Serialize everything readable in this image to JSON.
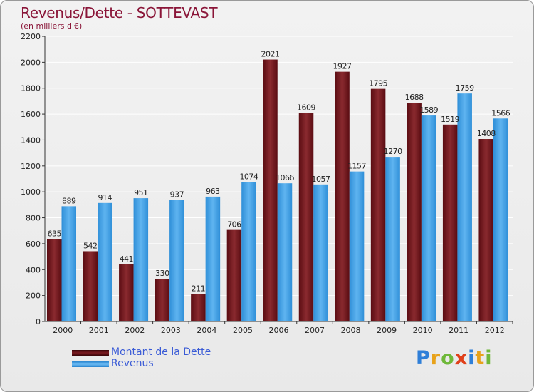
{
  "header": {
    "title": "Revenus/Dette - SOTTEVAST",
    "subtitle": "(en milliers d'€)"
  },
  "colors": {
    "dette": "#6b0f16",
    "revenus": "#3d9fe6",
    "axis_text": "#222222"
  },
  "legend": [
    {
      "label": "Montant de la Dette",
      "color": "#6b0f16"
    },
    {
      "label": "Revenus",
      "color": "#3d9fe6"
    }
  ],
  "logo": {
    "letters": [
      {
        "ch": "P",
        "color": "#2f7fd8"
      },
      {
        "ch": "r",
        "color": "#e8a21a"
      },
      {
        "ch": "o",
        "color": "#6fb83a"
      },
      {
        "ch": "x",
        "color": "#e0401a"
      },
      {
        "ch": "i",
        "color": "#2f7fd8"
      },
      {
        "ch": "t",
        "color": "#e8a21a"
      },
      {
        "ch": "i",
        "color": "#6fb83a"
      }
    ]
  },
  "chart_data": {
    "type": "bar",
    "categories": [
      "2000",
      "2001",
      "2002",
      "2003",
      "2004",
      "2005",
      "2006",
      "2007",
      "2008",
      "2009",
      "2010",
      "2011",
      "2012"
    ],
    "series": [
      {
        "name": "Montant de la Dette",
        "values": [
          635,
          542,
          441,
          330,
          211,
          706,
          2021,
          1609,
          1927,
          1795,
          1688,
          1519,
          1408
        ]
      },
      {
        "name": "Revenus",
        "values": [
          889,
          914,
          951,
          937,
          963,
          1074,
          1066,
          1057,
          1157,
          1270,
          1589,
          1759,
          1566
        ]
      }
    ],
    "title": "Revenus/Dette - SOTTEVAST",
    "ylabel": "(en milliers d'€)",
    "ylim": [
      0,
      2200
    ],
    "yticks": [
      0,
      200,
      400,
      600,
      800,
      1000,
      1200,
      1400,
      1600,
      1800,
      2000,
      2200
    ],
    "grid": true,
    "legend_position": "bottom-left"
  }
}
